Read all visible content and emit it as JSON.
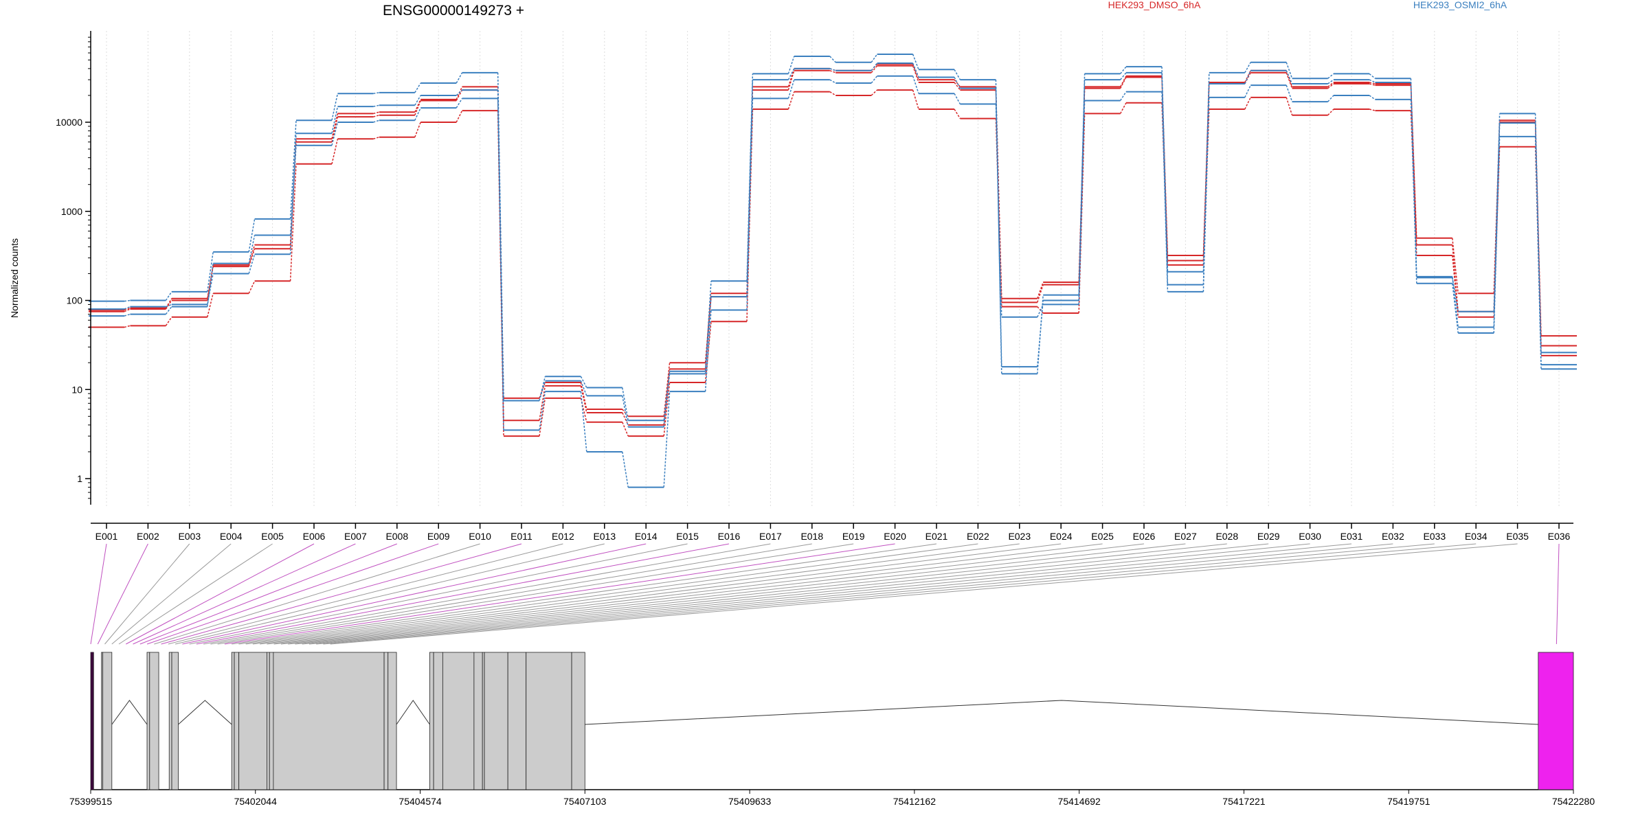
{
  "chart_data": {
    "type": "line",
    "title": "ENSG00000149273 +",
    "ylabel": "Normalized counts",
    "xlabel": "",
    "y_scale": "log",
    "y_ticks": [
      "1",
      "10",
      "100",
      "1000",
      "10000"
    ],
    "ylim": [
      0.5,
      90000
    ],
    "grid": "vertical dotted",
    "legend_placement": "top",
    "categories": [
      "E001",
      "E002",
      "E003",
      "E004",
      "E005",
      "E006",
      "E007",
      "E008",
      "E009",
      "E010",
      "E011",
      "E012",
      "E013",
      "E014",
      "E015",
      "E016",
      "E017",
      "E018",
      "E019",
      "E020",
      "E021",
      "E022",
      "E023",
      "E024",
      "E025",
      "E026",
      "E027",
      "E028",
      "E029",
      "E030",
      "E031",
      "E032",
      "E033",
      "E034",
      "E035",
      "E036"
    ],
    "series": [
      {
        "name": "HEK293_DMSO_6hA",
        "color": "#d62728",
        "values": [
          75,
          80,
          100,
          250,
          420,
          6500,
          12500,
          13000,
          18000,
          25000,
          8,
          12,
          6,
          5,
          20,
          120,
          25000,
          40000,
          38000,
          45000,
          30000,
          25000,
          105,
          160,
          25000,
          33000,
          320,
          28000,
          38000,
          25000,
          28000,
          27000,
          500,
          120,
          10500,
          40
        ]
      },
      {
        "name": "HEK293_DMSO_6hA",
        "color": "#d62728",
        "values": [
          78,
          82,
          105,
          240,
          380,
          6000,
          11500,
          12000,
          17500,
          23000,
          4.5,
          11,
          5.5,
          4,
          17,
          110,
          23000,
          38000,
          36000,
          43000,
          28000,
          23000,
          95,
          150,
          24000,
          32000,
          280,
          27000,
          36000,
          24000,
          27000,
          26000,
          420,
          75,
          10000,
          31
        ]
      },
      {
        "name": "HEK293_DMSO_6hA",
        "color": "#d62728",
        "values": [
          50,
          52,
          65,
          120,
          165,
          3400,
          6500,
          6800,
          10000,
          13500,
          3,
          8,
          4.3,
          3,
          12,
          58,
          14000,
          22000,
          20000,
          23000,
          14000,
          11000,
          85,
          72,
          12500,
          16500,
          250,
          14000,
          19000,
          12000,
          14000,
          13500,
          320,
          65,
          5300,
          24
        ]
      },
      {
        "name": "HEK293_OSMI2_6hA",
        "color": "#3a7fbf",
        "values": [
          98,
          100,
          125,
          350,
          820,
          10500,
          21000,
          21500,
          27500,
          36000,
          7.5,
          14,
          10.5,
          4.5,
          16,
          165,
          35000,
          55000,
          47000,
          58000,
          39000,
          30000,
          15,
          115,
          35000,
          42000,
          210,
          36000,
          47000,
          31000,
          35000,
          31000,
          185,
          50,
          12500,
          26
        ]
      },
      {
        "name": "HEK293_OSMI2_6hA",
        "color": "#3a7fbf",
        "values": [
          80,
          85,
          90,
          200,
          330,
          7500,
          15000,
          15500,
          20000,
          23000,
          7.5,
          12.5,
          8.5,
          3.8,
          15,
          110,
          30000,
          40000,
          38000,
          46000,
          32000,
          24000,
          18,
          100,
          30000,
          36000,
          150,
          27000,
          38000,
          27000,
          30000,
          28000,
          180,
          75,
          9800,
          19
        ]
      },
      {
        "name": "HEK293_OSMI2_6hA",
        "color": "#3a7fbf",
        "values": [
          67,
          70,
          85,
          260,
          540,
          5500,
          10000,
          10500,
          14500,
          18500,
          3.5,
          9.5,
          2,
          0.8,
          9.5,
          78,
          18500,
          30000,
          27500,
          33000,
          21000,
          16000,
          65,
          90,
          17500,
          22000,
          125,
          19000,
          26000,
          17000,
          20000,
          18000,
          155,
          43,
          6900,
          17
        ]
      }
    ],
    "gene_model": {
      "coordinate_ticks": [
        "75399515",
        "75402044",
        "75404574",
        "75407103",
        "75409633",
        "75412162",
        "75414692",
        "75417221",
        "75419751",
        "75422280"
      ],
      "highlighted_exons": [
        "E001",
        "E002",
        "E006",
        "E007",
        "E008",
        "E009",
        "E011",
        "E014",
        "E016",
        "E020",
        "E036"
      ],
      "normal_color": "#cccccc",
      "highlight_color": "#ee22ee"
    }
  }
}
